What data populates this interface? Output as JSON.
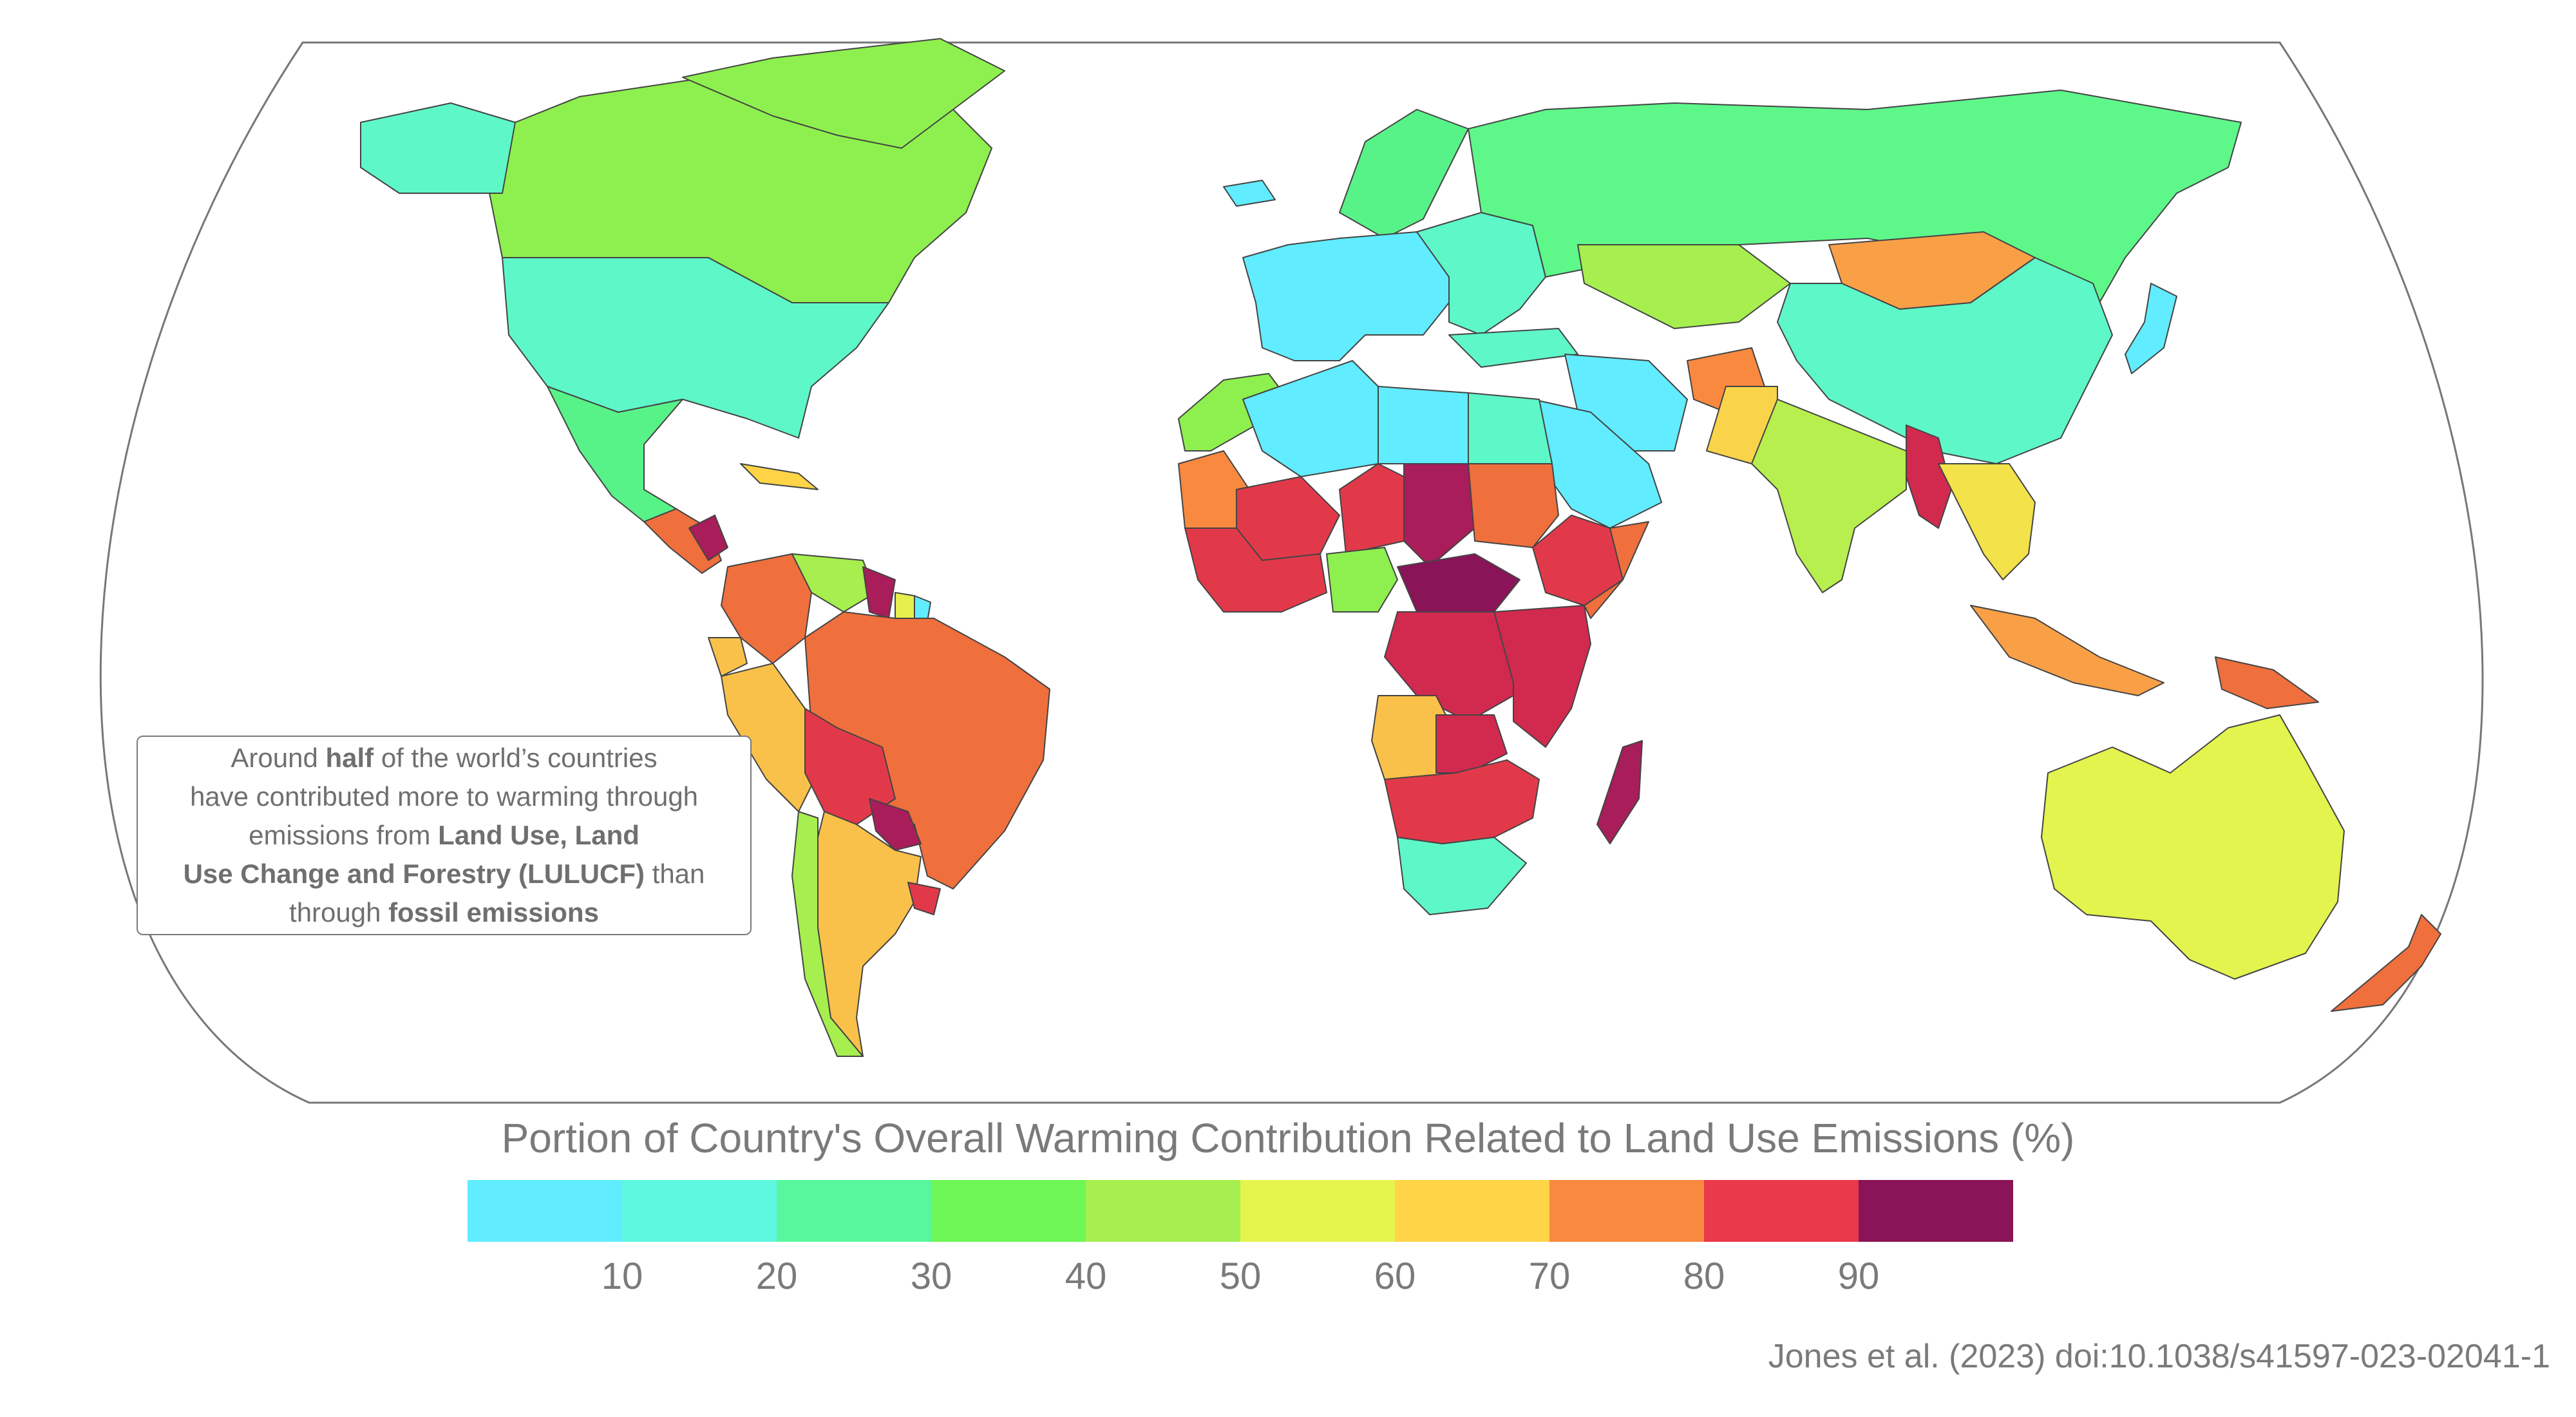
{
  "map": {
    "ocean_color": "#ffffff",
    "border_color": "#555555",
    "countries": [
      {
        "name": "Canada",
        "color": "#8ef04e"
      },
      {
        "name": "Greenland",
        "color": "#8ef04e"
      },
      {
        "name": "Alaska",
        "color": "#5ef7c8"
      },
      {
        "name": "United States",
        "color": "#5ef7c8"
      },
      {
        "name": "Mexico",
        "color": "#58f388"
      },
      {
        "name": "Central America",
        "color": "#ef6f3d"
      },
      {
        "name": "Nicaragua",
        "color": "#a81d5a"
      },
      {
        "name": "Cuba",
        "color": "#ffd447"
      },
      {
        "name": "Colombia",
        "color": "#ef6f3d"
      },
      {
        "name": "Venezuela",
        "color": "#a6ef4e"
      },
      {
        "name": "Guyana",
        "color": "#a81d5a"
      },
      {
        "name": "Suriname",
        "color": "#e6ef4e"
      },
      {
        "name": "French Guiana",
        "color": "#61ecff"
      },
      {
        "name": "Ecuador",
        "color": "#f9c14a"
      },
      {
        "name": "Peru",
        "color": "#f9c14a"
      },
      {
        "name": "Brazil",
        "color": "#ef6f3d"
      },
      {
        "name": "Bolivia",
        "color": "#e2394a"
      },
      {
        "name": "Paraguay",
        "color": "#a81d5a"
      },
      {
        "name": "Chile",
        "color": "#a6ef4e"
      },
      {
        "name": "Argentina",
        "color": "#f9c14a"
      },
      {
        "name": "Uruguay",
        "color": "#e2394a"
      },
      {
        "name": "Iceland",
        "color": "#61ecff"
      },
      {
        "name": "Scandinavia",
        "color": "#58f388"
      },
      {
        "name": "Western Europe",
        "color": "#61ecff"
      },
      {
        "name": "Eastern Europe",
        "color": "#5ef7c8"
      },
      {
        "name": "Russia",
        "color": "#5ef88a"
      },
      {
        "name": "Kazakhstan",
        "color": "#a6ef4e"
      },
      {
        "name": "Mongolia",
        "color": "#f9a047"
      },
      {
        "name": "China",
        "color": "#5ef7c8"
      },
      {
        "name": "Japan",
        "color": "#61ecff"
      },
      {
        "name": "Turkey",
        "color": "#5ef7c8"
      },
      {
        "name": "Iran",
        "color": "#61ecff"
      },
      {
        "name": "Saudi Arabia",
        "color": "#61ecff"
      },
      {
        "name": "Afghanistan",
        "color": "#f9893f"
      },
      {
        "name": "Pakistan",
        "color": "#f9d44a"
      },
      {
        "name": "India",
        "color": "#b7ef4e"
      },
      {
        "name": "Myanmar",
        "color": "#d2294f"
      },
      {
        "name": "Southeast Asia",
        "color": "#f3e24a"
      },
      {
        "name": "Indonesia",
        "color": "#f9a047"
      },
      {
        "name": "Papua New Guinea",
        "color": "#ef6f3d"
      },
      {
        "name": "Australia",
        "color": "#e4f44e"
      },
      {
        "name": "New Zealand",
        "color": "#ef6f3d"
      },
      {
        "name": "Morocco",
        "color": "#8ef04e"
      },
      {
        "name": "Algeria",
        "color": "#61ecff"
      },
      {
        "name": "Libya",
        "color": "#61ecff"
      },
      {
        "name": "Egypt",
        "color": "#5ef7c8"
      },
      {
        "name": "Mauritania",
        "color": "#f9893f"
      },
      {
        "name": "Mali",
        "color": "#e2394a"
      },
      {
        "name": "Niger",
        "color": "#e2394a"
      },
      {
        "name": "Chad",
        "color": "#a81d5a"
      },
      {
        "name": "Sudan",
        "color": "#ef6f3d"
      },
      {
        "name": "Ethiopia",
        "color": "#e2394a"
      },
      {
        "name": "Somalia",
        "color": "#ef6f3d"
      },
      {
        "name": "West Africa",
        "color": "#e2394a"
      },
      {
        "name": "Nigeria",
        "color": "#8ef04e"
      },
      {
        "name": "Central African Republic",
        "color": "#8a1458"
      },
      {
        "name": "DR Congo",
        "color": "#d2294f"
      },
      {
        "name": "East Africa",
        "color": "#d2294f"
      },
      {
        "name": "Angola",
        "color": "#f9c14a"
      },
      {
        "name": "Zambia",
        "color": "#d2294f"
      },
      {
        "name": "Southern Africa",
        "color": "#e2394a"
      },
      {
        "name": "South Africa",
        "color": "#5ef7c8"
      },
      {
        "name": "Madagascar",
        "color": "#a81d5a"
      }
    ]
  },
  "callout": {
    "line1_pre": "Around ",
    "line1_bold": "half",
    "line1_post": " of the world’s countries",
    "line2": "have contributed more to warming through",
    "line3_pre": "emissions from ",
    "line3_bold": "Land Use, Land",
    "line4_bold": "Use Change and Forestry (LULUCF)",
    "line4_post": " than",
    "line5_pre": "through ",
    "line5_bold": "fossil emissions"
  },
  "legend": {
    "title": "Portion of Country's Overall Warming Contribution Related to Land Use Emissions (%)",
    "colors": [
      "#61ecff",
      "#5ef7e0",
      "#58f79e",
      "#6ef756",
      "#a6ef4e",
      "#e6f44e",
      "#ffd447",
      "#f9893f",
      "#e9394a",
      "#8a1458"
    ],
    "ticks": [
      "10",
      "20",
      "30",
      "40",
      "50",
      "60",
      "70",
      "80",
      "90"
    ],
    "scale_max": 100
  },
  "citation": "Jones et al. (2023) doi:10.1038/s41597-023-02041-1"
}
